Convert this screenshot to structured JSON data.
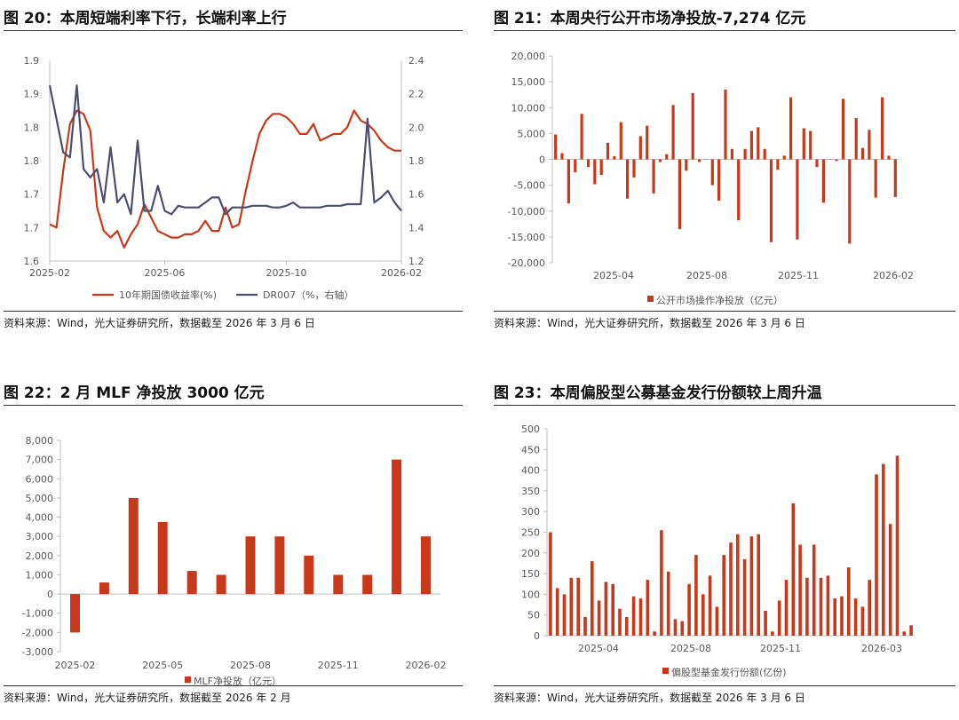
{
  "colors": {
    "red": "#c8391c",
    "navy": "#4a4e72",
    "axis": "#bfbfbf",
    "text": "#595959"
  },
  "panels": [
    {
      "title": "图 20：本周短端利率下行，长端利率上行",
      "source": "资料来源：Wind，光大证券研究所，数据截至 2026 年 3 月 6 日"
    },
    {
      "title": "图 21：本周央行公开市场净投放-7,274 亿元",
      "source": "资料来源：Wind，光大证券研究所，数据截至 2026 年 3 月 6 日"
    },
    {
      "title": "图 22：2 月 MLF 净投放 3000 亿元",
      "source": "资料来源：Wind，光大证券研究所，数据截至 2026 年 2 月"
    },
    {
      "title": "图 23：本周偏股型公募基金发行份额较上周升温",
      "source": "资料来源：Wind，光大证券研究所，数据截至 2026 年 3 月 6 日"
    }
  ],
  "chart_data": [
    {
      "type": "line",
      "title": "",
      "xlabel": "",
      "x_ticks": [
        "2025-02",
        "2025-06",
        "2025-10",
        "2026-02"
      ],
      "x_range": [
        0,
        52
      ],
      "x_tick_positions": [
        0,
        17,
        35,
        52
      ],
      "y_left": {
        "ticks": [
          "1.6",
          "1.7",
          "1.7",
          "1.8",
          "1.8",
          "1.9",
          "1.9"
        ],
        "range": [
          1.6,
          1.9
        ]
      },
      "y_right": {
        "ticks": [
          "1.2",
          "1.4",
          "1.6",
          "1.8",
          "2.0",
          "2.2",
          "2.4"
        ],
        "range": [
          1.2,
          2.4
        ]
      },
      "legend_position": "bottom",
      "series": [
        {
          "name": "10年期国债收益率(%)",
          "axis": "left",
          "color": "#c8391c",
          "values": [
            1.655,
            1.65,
            1.735,
            1.805,
            1.825,
            1.82,
            1.795,
            1.68,
            1.645,
            1.635,
            1.645,
            1.62,
            1.64,
            1.655,
            1.685,
            1.665,
            1.645,
            1.64,
            1.635,
            1.635,
            1.64,
            1.64,
            1.645,
            1.66,
            1.645,
            1.645,
            1.68,
            1.65,
            1.655,
            1.705,
            1.75,
            1.79,
            1.81,
            1.82,
            1.82,
            1.815,
            1.805,
            1.79,
            1.79,
            1.805,
            1.78,
            1.785,
            1.79,
            1.79,
            1.8,
            1.825,
            1.81,
            1.805,
            1.795,
            1.78,
            1.77,
            1.765,
            1.765
          ]
        },
        {
          "name": "DR007（%，右轴）",
          "axis": "right",
          "color": "#4a4e72",
          "values": [
            2.25,
            2.05,
            1.85,
            1.82,
            2.25,
            1.75,
            1.7,
            1.75,
            1.55,
            1.88,
            1.55,
            1.6,
            1.48,
            1.92,
            1.5,
            1.5,
            1.65,
            1.5,
            1.48,
            1.53,
            1.52,
            1.52,
            1.52,
            1.55,
            1.58,
            1.58,
            1.48,
            1.52,
            1.52,
            1.52,
            1.53,
            1.53,
            1.53,
            1.52,
            1.52,
            1.53,
            1.55,
            1.52,
            1.52,
            1.52,
            1.52,
            1.53,
            1.53,
            1.53,
            1.54,
            1.54,
            1.54,
            2.05,
            1.55,
            1.58,
            1.62,
            1.55,
            1.5
          ]
        }
      ]
    },
    {
      "type": "bar",
      "title": "",
      "xlabel": "",
      "x_ticks": [
        "2025-04",
        "2025-08",
        "2025-11",
        "2026-02"
      ],
      "y_ticks": [
        "20,000",
        "15,000",
        "10,000",
        "5,000",
        "0",
        "-5,000",
        "-10,000",
        "-15,000",
        "-20,000"
      ],
      "ylim": [
        -20000,
        20000
      ],
      "legend_position": "bottom",
      "series": [
        {
          "name": "公开市场操作净投放（亿元）",
          "color": "#c8391c",
          "values": [
            4800,
            1200,
            -8500,
            -2500,
            8800,
            -1500,
            -4800,
            -3000,
            3200,
            600,
            7200,
            -7600,
            -3500,
            4500,
            6500,
            -6600,
            -500,
            1000,
            10500,
            -13500,
            -2200,
            12800,
            -500,
            0,
            -5000,
            -8000,
            13500,
            2000,
            -11800,
            2000,
            5500,
            6200,
            2000,
            -16000,
            -2000,
            700,
            12000,
            -15500,
            6000,
            5500,
            -1500,
            -8400,
            0,
            -300,
            11700,
            -16300,
            8000,
            2200,
            5700,
            -7400,
            12000,
            700,
            -7274
          ]
        }
      ]
    },
    {
      "type": "bar",
      "title": "",
      "xlabel": "",
      "categories": [
        "2025-02",
        "2025-03",
        "2025-04",
        "2025-05",
        "2025-06",
        "2025-07",
        "2025-08",
        "2025-09",
        "2025-10",
        "2025-11",
        "2025-12",
        "2026-01",
        "2026-02"
      ],
      "x_ticks": [
        "2025-02",
        "2025-05",
        "2025-08",
        "2025-11",
        "2026-02"
      ],
      "y_ticks": [
        "8,000",
        "7,000",
        "6,000",
        "5,000",
        "4,000",
        "3,000",
        "2,000",
        "1,000",
        "0",
        "-1,000",
        "-2,000",
        "-3,000"
      ],
      "ylim": [
        -3000,
        8000
      ],
      "legend_position": "bottom",
      "series": [
        {
          "name": "MLF净投放（亿元）",
          "color": "#c8391c",
          "values": [
            -2000,
            600,
            5000,
            3750,
            1200,
            1000,
            3000,
            3000,
            2000,
            1000,
            1000,
            7000,
            3000
          ]
        }
      ]
    },
    {
      "type": "bar",
      "title": "",
      "xlabel": "",
      "x_ticks": [
        "2025-04",
        "2025-08",
        "2025-11",
        "2026-03"
      ],
      "y_ticks": [
        "500",
        "450",
        "400",
        "350",
        "300",
        "250",
        "200",
        "150",
        "100",
        "50",
        "0"
      ],
      "ylim": [
        0,
        500
      ],
      "legend_position": "bottom",
      "series": [
        {
          "name": "偏股型基金发行份额(亿份)",
          "color": "#c8391c",
          "values": [
            250,
            115,
            100,
            140,
            140,
            45,
            180,
            85,
            130,
            125,
            65,
            45,
            95,
            90,
            135,
            10,
            255,
            155,
            40,
            35,
            125,
            195,
            100,
            145,
            70,
            195,
            225,
            245,
            185,
            240,
            245,
            60,
            10,
            85,
            135,
            320,
            220,
            140,
            220,
            140,
            145,
            90,
            95,
            165,
            90,
            70,
            135,
            390,
            415,
            270,
            435,
            10,
            25
          ]
        }
      ]
    }
  ]
}
